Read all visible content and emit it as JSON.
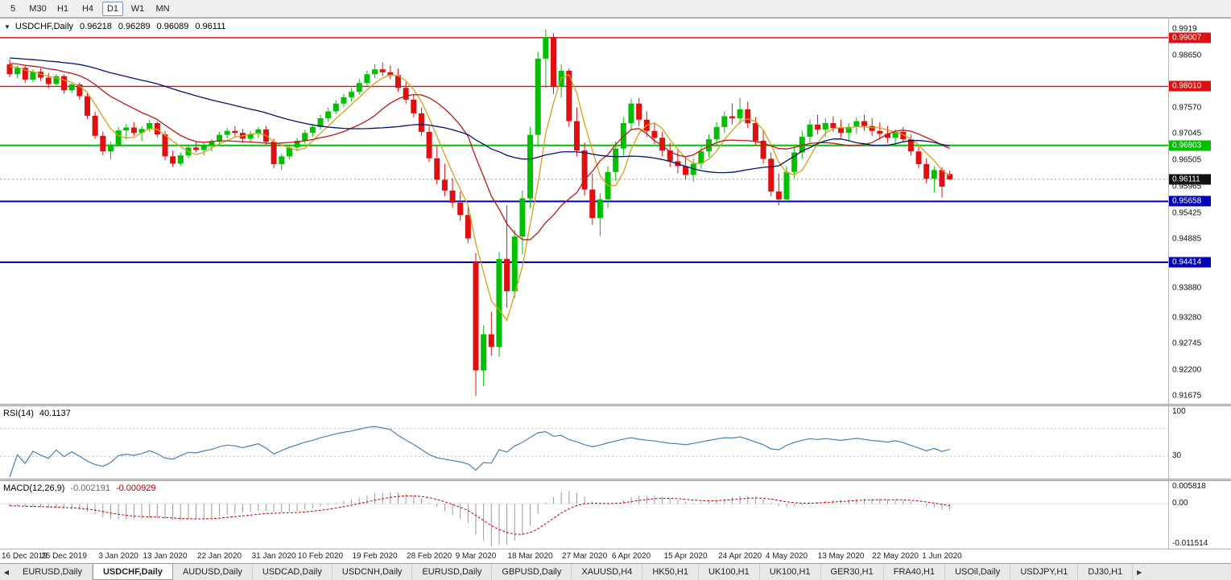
{
  "icons": {
    "chart_menu": "▼",
    "scroll_left": "◀",
    "scroll_right": "▶"
  },
  "toolbar": {
    "timeframes": [
      {
        "label": "5",
        "active": false
      },
      {
        "label": "M30",
        "active": false
      },
      {
        "label": "H1",
        "active": false
      },
      {
        "label": "H4",
        "active": false
      },
      {
        "label": "D1",
        "active": true
      },
      {
        "label": "W1",
        "active": false
      },
      {
        "label": "MN",
        "active": false
      }
    ]
  },
  "chart": {
    "symbol_info": {
      "symbol": "USDCHF,Daily",
      "open": "0.96218",
      "high": "0.96289",
      "low": "0.96089",
      "close": "0.96111"
    },
    "price_axis": {
      "ticks": [
        {
          "label": "0.9919",
          "price": 0.9919
        },
        {
          "label": "0.98650",
          "price": 0.9865
        },
        {
          "label": "0.97570",
          "price": 0.9757
        },
        {
          "label": "0.97045",
          "price": 0.97045
        },
        {
          "label": "0.96505",
          "price": 0.96505
        },
        {
          "label": "0.95965",
          "price": 0.95965
        },
        {
          "label": "0.95425",
          "price": 0.95425
        },
        {
          "label": "0.94885",
          "price": 0.94885
        },
        {
          "label": "0.93880",
          "price": 0.9388
        },
        {
          "label": "0.93280",
          "price": 0.9328
        },
        {
          "label": "0.92745",
          "price": 0.92745
        },
        {
          "label": "0.92200",
          "price": 0.922
        },
        {
          "label": "0.91675",
          "price": 0.91675
        }
      ]
    },
    "hlines": [
      {
        "label": "0.99007",
        "price": 0.99007,
        "color": "#dd1111",
        "width": 1.4
      },
      {
        "label": "0.98010",
        "price": 0.9801,
        "color": "#dd1111",
        "width": 1.4
      },
      {
        "label": "0.96803",
        "price": 0.96803,
        "color": "#00c000",
        "width": 2
      },
      {
        "label": "0.95658",
        "price": 0.95658,
        "color": "#0000bb",
        "width": 2
      },
      {
        "label": "0.94414",
        "price": 0.94414,
        "color": "#0000bb",
        "width": 2
      }
    ],
    "current_price": {
      "label": "0.96111",
      "price": 0.96111,
      "color": "#111111"
    }
  },
  "chart_data": {
    "type": "candlestick",
    "title": "USDCHF Daily",
    "symbol": "USDCHF",
    "timeframe": "Daily",
    "price_range": {
      "top": 0.994,
      "bottom": 0.915
    },
    "bull_color": "#00c000",
    "bear_color": "#e01010",
    "ma_warmup": {
      "count": 45,
      "start": 0.988,
      "end": 0.9845
    },
    "moving_averages": [
      {
        "name": "ma-fast",
        "period": 5,
        "color": "#d8a018"
      },
      {
        "name": "ma-medium",
        "period": 14,
        "color": "#c01818"
      },
      {
        "name": "ma-slow",
        "period": 40,
        "color": "#00146e"
      }
    ],
    "candles": [
      [
        0.9846,
        0.9856,
        0.982,
        0.9826
      ],
      [
        0.9826,
        0.9844,
        0.9818,
        0.9839
      ],
      [
        0.9839,
        0.9843,
        0.9808,
        0.9815
      ],
      [
        0.9815,
        0.9836,
        0.981,
        0.9831
      ],
      [
        0.9831,
        0.9838,
        0.9812,
        0.9819
      ],
      [
        0.9819,
        0.9828,
        0.9798,
        0.9806
      ],
      [
        0.9806,
        0.9826,
        0.98,
        0.9822
      ],
      [
        0.9822,
        0.9826,
        0.9786,
        0.9793
      ],
      [
        0.9793,
        0.981,
        0.9788,
        0.9805
      ],
      [
        0.9805,
        0.9809,
        0.9774,
        0.9781
      ],
      [
        0.9781,
        0.9788,
        0.9734,
        0.9741
      ],
      [
        0.9741,
        0.9749,
        0.9694,
        0.97
      ],
      [
        0.97,
        0.9709,
        0.966,
        0.9668
      ],
      [
        0.9668,
        0.9688,
        0.9652,
        0.9682
      ],
      [
        0.9682,
        0.9718,
        0.9678,
        0.9711
      ],
      [
        0.9711,
        0.9724,
        0.9693,
        0.9717
      ],
      [
        0.9717,
        0.9728,
        0.97,
        0.9706
      ],
      [
        0.9706,
        0.972,
        0.969,
        0.9714
      ],
      [
        0.9714,
        0.9733,
        0.9708,
        0.9726
      ],
      [
        0.9726,
        0.973,
        0.9697,
        0.9703
      ],
      [
        0.9703,
        0.971,
        0.965,
        0.9658
      ],
      [
        0.9658,
        0.967,
        0.9636,
        0.9643
      ],
      [
        0.9643,
        0.9666,
        0.9638,
        0.966
      ],
      [
        0.966,
        0.9682,
        0.9654,
        0.9676
      ],
      [
        0.9676,
        0.9688,
        0.9666,
        0.9671
      ],
      [
        0.9671,
        0.9686,
        0.966,
        0.9681
      ],
      [
        0.9681,
        0.9693,
        0.9668,
        0.9688
      ],
      [
        0.9688,
        0.9708,
        0.968,
        0.9702
      ],
      [
        0.9702,
        0.9716,
        0.9694,
        0.971
      ],
      [
        0.971,
        0.972,
        0.9698,
        0.9706
      ],
      [
        0.9706,
        0.9714,
        0.9686,
        0.9694
      ],
      [
        0.9694,
        0.971,
        0.9688,
        0.9704
      ],
      [
        0.9704,
        0.9718,
        0.9696,
        0.9713
      ],
      [
        0.9713,
        0.972,
        0.9682,
        0.9688
      ],
      [
        0.9688,
        0.9694,
        0.9634,
        0.9642
      ],
      [
        0.9642,
        0.9663,
        0.963,
        0.9658
      ],
      [
        0.9658,
        0.9682,
        0.9652,
        0.9676
      ],
      [
        0.9676,
        0.9696,
        0.9668,
        0.969
      ],
      [
        0.969,
        0.9712,
        0.9684,
        0.9706
      ],
      [
        0.9706,
        0.9724,
        0.9698,
        0.9718
      ],
      [
        0.9718,
        0.9743,
        0.9712,
        0.9736
      ],
      [
        0.9736,
        0.9758,
        0.9728,
        0.975
      ],
      [
        0.975,
        0.9773,
        0.9744,
        0.9766
      ],
      [
        0.9766,
        0.9786,
        0.9758,
        0.9779
      ],
      [
        0.9779,
        0.9798,
        0.977,
        0.979
      ],
      [
        0.979,
        0.9816,
        0.9784,
        0.9808
      ],
      [
        0.9808,
        0.9833,
        0.9802,
        0.9826
      ],
      [
        0.9826,
        0.9846,
        0.9818,
        0.9836
      ],
      [
        0.9836,
        0.985,
        0.9822,
        0.983
      ],
      [
        0.983,
        0.9844,
        0.9816,
        0.9824
      ],
      [
        0.9824,
        0.9838,
        0.979,
        0.9798
      ],
      [
        0.9798,
        0.981,
        0.9766,
        0.9774
      ],
      [
        0.9774,
        0.9786,
        0.9738,
        0.9746
      ],
      [
        0.9746,
        0.9758,
        0.97,
        0.9708
      ],
      [
        0.9708,
        0.972,
        0.9646,
        0.9654
      ],
      [
        0.9654,
        0.9678,
        0.96,
        0.961
      ],
      [
        0.961,
        0.9643,
        0.9576,
        0.9588
      ],
      [
        0.9588,
        0.9613,
        0.9553,
        0.9563
      ],
      [
        0.9563,
        0.9586,
        0.9526,
        0.9538
      ],
      [
        0.9538,
        0.9558,
        0.948,
        0.949
      ],
      [
        0.9442,
        0.946,
        0.9168,
        0.922
      ],
      [
        0.922,
        0.9312,
        0.9188,
        0.9294
      ],
      [
        0.9294,
        0.934,
        0.925,
        0.9268
      ],
      [
        0.9268,
        0.9462,
        0.9248,
        0.9448
      ],
      [
        0.9448,
        0.9558,
        0.9348,
        0.9382
      ],
      [
        0.9382,
        0.9508,
        0.9368,
        0.9494
      ],
      [
        0.9494,
        0.9588,
        0.9458,
        0.9572
      ],
      [
        0.9572,
        0.9718,
        0.9552,
        0.9702
      ],
      [
        0.9702,
        0.9872,
        0.9678,
        0.9858
      ],
      [
        0.9858,
        0.9918,
        0.9798,
        0.9902
      ],
      [
        0.9902,
        0.991,
        0.9786,
        0.98
      ],
      [
        0.98,
        0.9846,
        0.9778,
        0.9833
      ],
      [
        0.9833,
        0.9838,
        0.9718,
        0.973
      ],
      [
        0.973,
        0.9758,
        0.9658,
        0.967
      ],
      [
        0.967,
        0.9686,
        0.9578,
        0.959
      ],
      [
        0.959,
        0.9622,
        0.9518,
        0.9532
      ],
      [
        0.9532,
        0.9582,
        0.9495,
        0.957
      ],
      [
        0.957,
        0.9638,
        0.9552,
        0.9626
      ],
      [
        0.9626,
        0.9688,
        0.9608,
        0.9674
      ],
      [
        0.9674,
        0.9738,
        0.9658,
        0.9726
      ],
      [
        0.9726,
        0.9776,
        0.971,
        0.9766
      ],
      [
        0.9766,
        0.9778,
        0.972,
        0.9733
      ],
      [
        0.9733,
        0.975,
        0.9698,
        0.971
      ],
      [
        0.971,
        0.9728,
        0.9683,
        0.9696
      ],
      [
        0.9696,
        0.9708,
        0.9658,
        0.967
      ],
      [
        0.967,
        0.9686,
        0.9636,
        0.9648
      ],
      [
        0.9648,
        0.967,
        0.9623,
        0.9638
      ],
      [
        0.9638,
        0.9658,
        0.961,
        0.962
      ],
      [
        0.962,
        0.9653,
        0.9606,
        0.9643
      ],
      [
        0.9643,
        0.9678,
        0.9633,
        0.9668
      ],
      [
        0.9668,
        0.9703,
        0.9656,
        0.9693
      ],
      [
        0.9693,
        0.9728,
        0.968,
        0.9718
      ],
      [
        0.9718,
        0.975,
        0.9706,
        0.974
      ],
      [
        0.974,
        0.9766,
        0.9723,
        0.9736
      ],
      [
        0.9736,
        0.9778,
        0.9724,
        0.9754
      ],
      [
        0.9754,
        0.977,
        0.9716,
        0.9726
      ],
      [
        0.9726,
        0.9738,
        0.968,
        0.969
      ],
      [
        0.969,
        0.9713,
        0.9643,
        0.9653
      ],
      [
        0.9653,
        0.9666,
        0.9576,
        0.9586
      ],
      [
        0.9586,
        0.9623,
        0.9558,
        0.957
      ],
      [
        0.957,
        0.9638,
        0.9563,
        0.9626
      ],
      [
        0.9626,
        0.9678,
        0.9613,
        0.9666
      ],
      [
        0.9666,
        0.971,
        0.9653,
        0.9698
      ],
      [
        0.9698,
        0.9733,
        0.9686,
        0.9723
      ],
      [
        0.9723,
        0.9743,
        0.9703,
        0.9713
      ],
      [
        0.9713,
        0.9736,
        0.9698,
        0.9726
      ],
      [
        0.9726,
        0.974,
        0.9708,
        0.9716
      ],
      [
        0.9716,
        0.9733,
        0.9696,
        0.9706
      ],
      [
        0.9706,
        0.9726,
        0.969,
        0.9718
      ],
      [
        0.9718,
        0.9738,
        0.9704,
        0.973
      ],
      [
        0.973,
        0.9743,
        0.971,
        0.972
      ],
      [
        0.972,
        0.9736,
        0.97,
        0.971
      ],
      [
        0.971,
        0.9728,
        0.9693,
        0.9704
      ],
      [
        0.9704,
        0.972,
        0.9686,
        0.9696
      ],
      [
        0.9696,
        0.9713,
        0.968,
        0.9708
      ],
      [
        0.9708,
        0.9718,
        0.9686,
        0.9693
      ],
      [
        0.9693,
        0.9703,
        0.966,
        0.9668
      ],
      [
        0.9668,
        0.9678,
        0.9634,
        0.9642
      ],
      [
        0.9642,
        0.9654,
        0.9603,
        0.9612
      ],
      [
        0.9612,
        0.9638,
        0.9584,
        0.963
      ],
      [
        0.963,
        0.9636,
        0.9574,
        0.9596
      ],
      [
        0.96218,
        0.96289,
        0.96089,
        0.96111
      ]
    ],
    "x_labels": [
      {
        "label": "16 Dec 2019",
        "index": 0
      },
      {
        "label": "25 Dec 2019",
        "index": 7
      },
      {
        "label": "3 Jan 2020",
        "index": 14
      },
      {
        "label": "13 Jan 2020",
        "index": 20
      },
      {
        "label": "22 Jan 2020",
        "index": 27
      },
      {
        "label": "31 Jan 2020",
        "index": 34
      },
      {
        "label": "10 Feb 2020",
        "index": 40
      },
      {
        "label": "19 Feb 2020",
        "index": 47
      },
      {
        "label": "28 Feb 2020",
        "index": 54
      },
      {
        "label": "9 Mar 2020",
        "index": 60
      },
      {
        "label": "18 Mar 2020",
        "index": 67
      },
      {
        "label": "27 Mar 2020",
        "index": 74
      },
      {
        "label": "6 Apr 2020",
        "index": 80
      },
      {
        "label": "15 Apr 2020",
        "index": 87
      },
      {
        "label": "24 Apr 2020",
        "index": 94
      },
      {
        "label": "4 May 2020",
        "index": 100
      },
      {
        "label": "13 May 2020",
        "index": 107
      },
      {
        "label": "22 May 2020",
        "index": 114
      },
      {
        "label": "1 Jun 2020",
        "index": 120
      }
    ]
  },
  "rsi": {
    "label": "RSI(14)",
    "value": "40.1137",
    "period": 14,
    "color": "#4682b4",
    "levels": [
      70,
      30
    ],
    "axis_labels": [
      {
        "label": "100",
        "value": 100
      },
      {
        "label": "30",
        "value": 30
      }
    ]
  },
  "macd": {
    "label": "MACD(12,26,9)",
    "value1": "-0.002191",
    "value2": "-0.000929",
    "fast": 12,
    "slow": 26,
    "signal": 9,
    "hist_color": "#9a9a9a",
    "signal_color": "#c00000",
    "range": [
      -0.011514,
      0.005818
    ],
    "axis_labels": [
      {
        "label": "0.005818",
        "value": 0.005818
      },
      {
        "label": "0.00",
        "value": 0
      },
      {
        "label": "-0.011514",
        "value": -0.011514
      }
    ]
  },
  "tabs": {
    "items": [
      {
        "label": "EURUSD,Daily",
        "active": false
      },
      {
        "label": "USDCHF,Daily",
        "active": true
      },
      {
        "label": "AUDUSD,Daily",
        "active": false
      },
      {
        "label": "USDCAD,Daily",
        "active": false
      },
      {
        "label": "USDCNH,Daily",
        "active": false
      },
      {
        "label": "EURUSD,Daily",
        "active": false
      },
      {
        "label": "GBPUSD,Daily",
        "active": false
      },
      {
        "label": "XAUUSD,H4",
        "active": false
      },
      {
        "label": "HK50,H1",
        "active": false
      },
      {
        "label": "UK100,H1",
        "active": false
      },
      {
        "label": "UK100,H1",
        "active": false
      },
      {
        "label": "GER30,H1",
        "active": false
      },
      {
        "label": "FRA40,H1",
        "active": false
      },
      {
        "label": "USOil,Daily",
        "active": false
      },
      {
        "label": "USDJPY,H1",
        "active": false
      },
      {
        "label": "DJ30,H1",
        "active": false
      }
    ]
  }
}
